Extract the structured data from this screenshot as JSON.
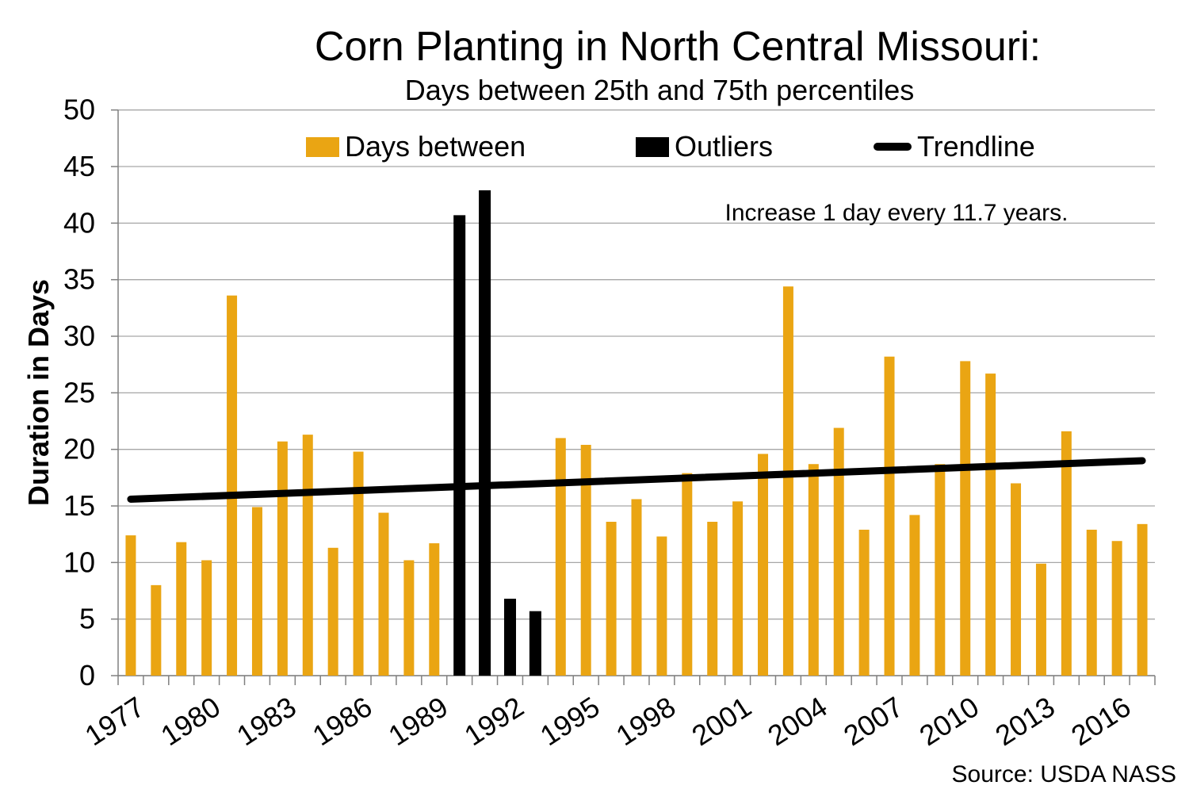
{
  "title": "Corn Planting in North Central Missouri:",
  "subtitle": "Days between 25th and 75th percentiles",
  "y_axis_title": "Duration in Days",
  "annotation": "Increase 1 day every 11.7 years.",
  "source": "Source: USDA NASS",
  "colors": {
    "gold": "#EAA513",
    "black": "#000000",
    "gridline": "#A6A6A6",
    "axis": "#808080",
    "background": "#FFFFFF"
  },
  "legend": [
    {
      "label": "Days between",
      "swatch": "bar",
      "color": "#EAA513"
    },
    {
      "label": "Outliers",
      "swatch": "bar",
      "color": "#000000"
    },
    {
      "label": "Trendline",
      "swatch": "line",
      "color": "#000000"
    }
  ],
  "chart_data": {
    "type": "bar",
    "title": "Corn Planting in North Central Missouri:",
    "subtitle": "Days between 25th and 75th percentiles",
    "xlabel": "",
    "ylabel": "Duration in Days",
    "ylim": [
      0,
      50
    ],
    "y_ticks": [
      0,
      5,
      10,
      15,
      20,
      25,
      30,
      35,
      40,
      45,
      50
    ],
    "x_tick_labels": [
      "1977",
      "1980",
      "1983",
      "1986",
      "1989",
      "1992",
      "1995",
      "1998",
      "2001",
      "2004",
      "2007",
      "2010",
      "2013",
      "2016"
    ],
    "x_label_interval": 3,
    "grid": true,
    "legend_position": "top-inside",
    "annotation": "Increase 1 day every 11.7 years.",
    "source": "Source: USDA NASS",
    "bars": [
      {
        "year": 1977,
        "value": 12.4,
        "outlier": false
      },
      {
        "year": 1978,
        "value": 8.0,
        "outlier": false
      },
      {
        "year": 1979,
        "value": 11.8,
        "outlier": false
      },
      {
        "year": 1980,
        "value": 10.2,
        "outlier": false
      },
      {
        "year": 1981,
        "value": 33.6,
        "outlier": false
      },
      {
        "year": 1982,
        "value": 14.9,
        "outlier": false
      },
      {
        "year": 1983,
        "value": 20.7,
        "outlier": false
      },
      {
        "year": 1984,
        "value": 21.3,
        "outlier": false
      },
      {
        "year": 1985,
        "value": 11.3,
        "outlier": false
      },
      {
        "year": 1986,
        "value": 19.8,
        "outlier": false
      },
      {
        "year": 1987,
        "value": 14.4,
        "outlier": false
      },
      {
        "year": 1988,
        "value": 10.2,
        "outlier": false
      },
      {
        "year": 1989,
        "value": 11.7,
        "outlier": false
      },
      {
        "year": 1990,
        "value": 40.7,
        "outlier": true
      },
      {
        "year": 1991,
        "value": 42.9,
        "outlier": true
      },
      {
        "year": 1992,
        "value": 6.8,
        "outlier": true
      },
      {
        "year": 1993,
        "value": 5.7,
        "outlier": true
      },
      {
        "year": 1994,
        "value": 21.0,
        "outlier": false
      },
      {
        "year": 1995,
        "value": 20.4,
        "outlier": false
      },
      {
        "year": 1996,
        "value": 13.6,
        "outlier": false
      },
      {
        "year": 1997,
        "value": 15.6,
        "outlier": false
      },
      {
        "year": 1998,
        "value": 12.3,
        "outlier": false
      },
      {
        "year": 1999,
        "value": 17.9,
        "outlier": false
      },
      {
        "year": 2000,
        "value": 13.6,
        "outlier": false
      },
      {
        "year": 2001,
        "value": 15.4,
        "outlier": false
      },
      {
        "year": 2002,
        "value": 19.6,
        "outlier": false
      },
      {
        "year": 2003,
        "value": 34.4,
        "outlier": false
      },
      {
        "year": 2004,
        "value": 18.7,
        "outlier": false
      },
      {
        "year": 2005,
        "value": 21.9,
        "outlier": false
      },
      {
        "year": 2006,
        "value": 12.9,
        "outlier": false
      },
      {
        "year": 2007,
        "value": 28.2,
        "outlier": false
      },
      {
        "year": 2008,
        "value": 14.2,
        "outlier": false
      },
      {
        "year": 2009,
        "value": 18.7,
        "outlier": false
      },
      {
        "year": 2010,
        "value": 27.8,
        "outlier": false
      },
      {
        "year": 2011,
        "value": 26.7,
        "outlier": false
      },
      {
        "year": 2012,
        "value": 17.0,
        "outlier": false
      },
      {
        "year": 2013,
        "value": 9.9,
        "outlier": false
      },
      {
        "year": 2014,
        "value": 21.6,
        "outlier": false
      },
      {
        "year": 2015,
        "value": 12.9,
        "outlier": false
      },
      {
        "year": 2016,
        "value": 11.9,
        "outlier": false
      },
      {
        "year": 2017,
        "value": 13.4,
        "outlier": false
      }
    ],
    "series_names": {
      "main": "Days between",
      "outliers": "Outliers",
      "trend": "Trendline"
    },
    "trendline": {
      "start_year": 1977,
      "end_year": 2017,
      "start_value": 15.6,
      "end_value": 19.0,
      "slope_note": "Increase 1 day every 11.7 years."
    }
  }
}
